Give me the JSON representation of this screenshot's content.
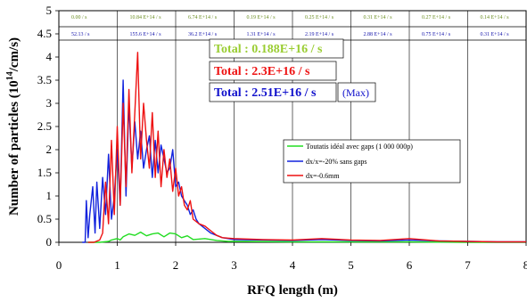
{
  "chart_data": {
    "type": "line",
    "xlabel": "RFQ length (m)",
    "ylabel_main": "Number of particles (10",
    "ylabel_exp": "14",
    "ylabel_tail": "/cm/s)",
    "xlim": [
      0,
      8
    ],
    "ylim": [
      0,
      5
    ],
    "xticks": [
      "0",
      "1",
      "2",
      "3",
      "4",
      "5",
      "6",
      "7",
      "8"
    ],
    "yticks": [
      "0",
      "0.5",
      "1",
      "1.5",
      "2",
      "2.5",
      "3",
      "3.5",
      "4",
      "4.5",
      "5"
    ],
    "grid": "vertical",
    "header_row1": [
      "0.00 / s",
      "10.84 E+14 / s",
      "6.74 E+14 / s",
      "0.19 E+14 / s",
      "0.25 E+14 / s",
      "0.31 E+14 / s",
      "0.27 E+14 / s",
      "0.14 E+14 / s"
    ],
    "header_row2": [
      "52.13 / s",
      "155.6 E+14 / s",
      "36.2 E+14 / s",
      "1.31 E+14 / s",
      "2.19 E+14 / s",
      "2.88 E+14 / s",
      "0.75 E+14 / s",
      "0.31 E+14 / s"
    ],
    "totals": [
      {
        "text": "Total : 0.188E+16 / s",
        "color": "#9acd32"
      },
      {
        "text": "Total : 2.3E+16 / s",
        "color": "#ee1111"
      },
      {
        "text": "Total : 2.51E+16 / s",
        "color": "#1111cc"
      }
    ],
    "max_label": "(Max)",
    "series": [
      {
        "name": "Toutatis idéal avec gaps (1 000 000p)",
        "color": "#22dd22",
        "x": [
          0.5,
          0.7,
          0.85,
          0.9,
          1.0,
          1.05,
          1.1,
          1.2,
          1.3,
          1.4,
          1.5,
          1.6,
          1.7,
          1.8,
          1.9,
          2.0,
          2.1,
          2.2,
          2.3,
          2.5,
          2.7,
          2.9,
          3.2,
          4.0,
          5.0,
          6.0,
          7.0,
          8.0
        ],
        "values": [
          0,
          0,
          0.02,
          0.05,
          0.08,
          0.05,
          0.12,
          0.18,
          0.15,
          0.22,
          0.14,
          0.18,
          0.2,
          0.12,
          0.2,
          0.18,
          0.1,
          0.14,
          0.06,
          0.08,
          0.04,
          0.02,
          0.02,
          0.01,
          0.01,
          0.01,
          0.0,
          0.0
        ]
      },
      {
        "name": "dx/x=-20% sans gaps",
        "color": "#1122dd",
        "x": [
          0.4,
          0.45,
          0.47,
          0.5,
          0.53,
          0.58,
          0.62,
          0.65,
          0.7,
          0.75,
          0.8,
          0.85,
          0.9,
          0.95,
          1.0,
          1.05,
          1.1,
          1.15,
          1.2,
          1.25,
          1.3,
          1.35,
          1.4,
          1.45,
          1.5,
          1.55,
          1.6,
          1.65,
          1.7,
          1.75,
          1.8,
          1.85,
          1.9,
          1.95,
          2.0,
          2.05,
          2.1,
          2.15,
          2.2,
          2.25,
          2.3,
          2.35,
          2.4,
          2.5,
          2.6,
          2.7,
          2.8,
          2.9,
          3.0,
          3.5,
          4.0,
          4.5,
          5.0,
          5.5,
          6.0,
          6.5,
          7.0,
          7.5,
          8.0
        ],
        "values": [
          0,
          0,
          0.9,
          0.1,
          0.6,
          1.2,
          0.2,
          1.3,
          0.3,
          1.4,
          0.6,
          1.9,
          0.5,
          1.0,
          2.0,
          0.8,
          3.5,
          1.0,
          3.0,
          1.6,
          2.6,
          1.8,
          2.4,
          1.6,
          2.0,
          2.3,
          1.4,
          2.2,
          1.5,
          2.1,
          1.8,
          1.5,
          1.6,
          2.0,
          1.2,
          1.3,
          1.0,
          0.9,
          0.8,
          0.6,
          0.7,
          0.5,
          0.4,
          0.3,
          0.2,
          0.15,
          0.1,
          0.08,
          0.06,
          0.05,
          0.04,
          0.06,
          0.04,
          0.03,
          0.05,
          0.03,
          0.02,
          0.01,
          0.01
        ]
      },
      {
        "name": "dx=-0.6mm",
        "color": "#ee1111",
        "x": [
          0.5,
          0.6,
          0.7,
          0.75,
          0.8,
          0.85,
          0.9,
          0.95,
          1.0,
          1.05,
          1.1,
          1.15,
          1.2,
          1.25,
          1.3,
          1.35,
          1.4,
          1.45,
          1.5,
          1.55,
          1.6,
          1.65,
          1.7,
          1.75,
          1.8,
          1.85,
          1.9,
          1.95,
          2.0,
          2.05,
          2.1,
          2.15,
          2.2,
          2.25,
          2.3,
          2.4,
          2.5,
          2.6,
          2.7,
          2.8,
          3.0,
          3.5,
          4.0,
          4.5,
          5.0,
          5.5,
          6.0,
          6.5,
          7.0,
          7.5,
          8.0
        ],
        "values": [
          0,
          0,
          0.05,
          0.2,
          1.3,
          0.4,
          2.2,
          0.6,
          2.5,
          0.8,
          3.0,
          1.2,
          3.3,
          1.5,
          2.8,
          4.1,
          1.8,
          3.0,
          2.2,
          1.6,
          2.8,
          1.4,
          2.4,
          1.2,
          2.0,
          1.4,
          1.8,
          1.1,
          1.6,
          1.0,
          1.2,
          0.8,
          0.7,
          0.9,
          0.5,
          0.4,
          0.35,
          0.25,
          0.15,
          0.1,
          0.08,
          0.06,
          0.05,
          0.08,
          0.05,
          0.04,
          0.08,
          0.03,
          0.02,
          0.01,
          0.01
        ]
      }
    ]
  }
}
